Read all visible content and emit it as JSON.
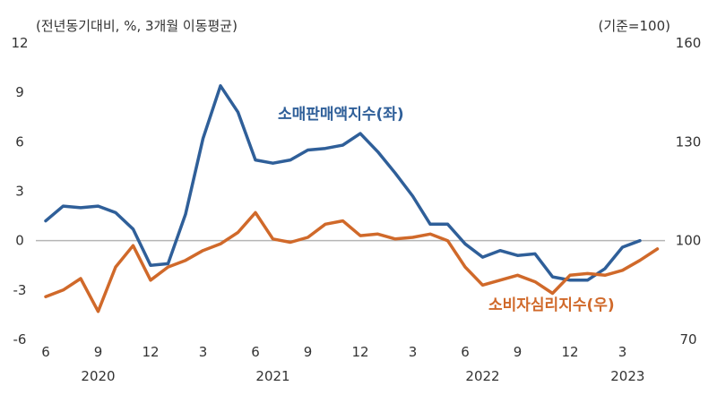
{
  "chart_data": {
    "type": "line",
    "left_axis_unit": "(전년동기대비, %, 3개월 이동평균)",
    "right_axis_unit": "(기준=100)",
    "x": [
      "2020-06",
      "2020-07",
      "2020-08",
      "2020-09",
      "2020-10",
      "2020-11",
      "2020-12",
      "2021-01",
      "2021-02",
      "2021-03",
      "2021-04",
      "2021-05",
      "2021-06",
      "2021-07",
      "2021-08",
      "2021-09",
      "2021-10",
      "2021-11",
      "2021-12",
      "2022-01",
      "2022-02",
      "2022-03",
      "2022-04",
      "2022-05",
      "2022-06",
      "2022-07",
      "2022-08",
      "2022-09",
      "2022-10",
      "2022-11",
      "2022-12",
      "2023-01",
      "2023-02",
      "2023-03",
      "2023-04",
      "2023-05"
    ],
    "x_tick_labels": [
      "6",
      "9",
      "12",
      "3",
      "6",
      "9",
      "12",
      "3",
      "6",
      "9",
      "12",
      "3"
    ],
    "x_year_labels": [
      "2020",
      "2021",
      "2022",
      "2023"
    ],
    "y_left": {
      "ylim": [
        -6,
        12
      ],
      "ticks": [
        "12",
        "9",
        "6",
        "3",
        "0",
        "-3",
        "-6"
      ]
    },
    "y_right": {
      "ylim": [
        70,
        160
      ],
      "ticks": [
        "160",
        "130",
        "100",
        "70"
      ]
    },
    "series": [
      {
        "name": "소매판매액지수(좌)",
        "axis": "left",
        "color": "#2f5f99",
        "values": [
          1.2,
          2.1,
          2.0,
          2.1,
          1.7,
          0.7,
          -1.5,
          -1.4,
          1.6,
          6.2,
          9.4,
          7.8,
          4.9,
          4.7,
          4.9,
          5.5,
          5.6,
          5.8,
          6.5,
          5.4,
          4.1,
          2.7,
          1.0,
          1.0,
          -0.2,
          -1.0,
          -0.6,
          -0.9,
          -0.8,
          -2.2,
          -2.4,
          -2.4,
          -1.7,
          -0.4,
          0.0,
          null
        ]
      },
      {
        "name": "소비자심리지수(우)",
        "axis": "right",
        "color": "#d0692a",
        "values": [
          83.0,
          85.0,
          88.5,
          78.5,
          92.0,
          98.5,
          88.0,
          92.0,
          94.0,
          97.0,
          99.0,
          102.5,
          108.5,
          100.5,
          99.5,
          101.0,
          105.0,
          106.0,
          101.5,
          102.0,
          100.5,
          101.0,
          102.0,
          100.0,
          92.0,
          86.5,
          88.0,
          89.5,
          87.5,
          84.0,
          89.5,
          90.0,
          89.5,
          91.0,
          94.0,
          97.5
        ]
      }
    ],
    "zero_line": true,
    "grid": false
  }
}
